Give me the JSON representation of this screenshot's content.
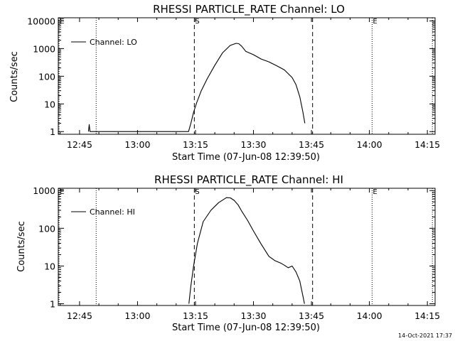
{
  "footer": {
    "timestamp": "14-Oct-2021 17:37"
  },
  "chart_data": [
    {
      "type": "line",
      "title": "RHESSI PARTICLE_RATE Channel: LO",
      "xlabel": "Start Time (07-Jun-08 12:39:50)",
      "ylabel": "Counts/sec",
      "yscale": "log",
      "xlim": [
        -0.5,
        97
      ],
      "ylim": [
        0.8,
        13000
      ],
      "xticks": [
        {
          "t": 5,
          "label": "12:45"
        },
        {
          "t": 20,
          "label": "13:00"
        },
        {
          "t": 35,
          "label": "13:15"
        },
        {
          "t": 50,
          "label": "13:30"
        },
        {
          "t": 65,
          "label": "13:45"
        },
        {
          "t": 80,
          "label": "14:00"
        },
        {
          "t": 95,
          "label": "14:15"
        }
      ],
      "yticks": [
        {
          "v": 1,
          "label": "1"
        },
        {
          "v": 10,
          "label": "10"
        },
        {
          "v": 100,
          "label": "100"
        },
        {
          "v": 1000,
          "label": "1000"
        },
        {
          "v": 10000,
          "label": "10000"
        }
      ],
      "legend": {
        "label": "Channel: LO",
        "position": "top-left"
      },
      "markers": [
        {
          "t": 34.7,
          "style": "dashed",
          "label": "S"
        },
        {
          "t": 65.3,
          "style": "dashed",
          "label": ""
        },
        {
          "t": 9.3,
          "style": "dotted",
          "label": ""
        },
        {
          "t": 80.7,
          "style": "dotted",
          "label": "E"
        },
        {
          "t": 96.3,
          "style": "dotted",
          "label": ""
        },
        {
          "t": -0.3,
          "style": "dotted",
          "label": "E"
        }
      ],
      "series": [
        {
          "name": "Channel: LO",
          "t": [
            7.3,
            7.5,
            7.7,
            33.2,
            33.8,
            34.5,
            35.3,
            36.5,
            38,
            40,
            42,
            44,
            45.5,
            46.2,
            47,
            48,
            50,
            52,
            54,
            56,
            58,
            60,
            61,
            62,
            62.8,
            63.3
          ],
          "y": [
            1,
            1.8,
            1,
            1,
            2,
            5,
            11,
            30,
            80,
            250,
            700,
            1300,
            1550,
            1500,
            1200,
            800,
            600,
            420,
            330,
            240,
            170,
            90,
            50,
            18,
            5,
            2
          ]
        }
      ]
    },
    {
      "type": "line",
      "title": "RHESSI PARTICLE_RATE Channel: HI",
      "xlabel": "Start Time (07-Jun-08 12:39:50)",
      "ylabel": "Counts/sec",
      "yscale": "log",
      "xlim": [
        -0.5,
        97
      ],
      "ylim": [
        0.9,
        1150
      ],
      "xticks": [
        {
          "t": 5,
          "label": "12:45"
        },
        {
          "t": 20,
          "label": "13:00"
        },
        {
          "t": 35,
          "label": "13:15"
        },
        {
          "t": 50,
          "label": "13:30"
        },
        {
          "t": 65,
          "label": "13:45"
        },
        {
          "t": 80,
          "label": "14:00"
        },
        {
          "t": 95,
          "label": "14:15"
        }
      ],
      "yticks": [
        {
          "v": 1,
          "label": "1"
        },
        {
          "v": 10,
          "label": "10"
        },
        {
          "v": 100,
          "label": "100"
        },
        {
          "v": 1000,
          "label": "1000"
        }
      ],
      "legend": {
        "label": "Channel: HI",
        "position": "top-left"
      },
      "markers": [
        {
          "t": 34.7,
          "style": "dashed",
          "label": "S"
        },
        {
          "t": 65.3,
          "style": "dashed",
          "label": ""
        },
        {
          "t": 9.3,
          "style": "dotted",
          "label": ""
        },
        {
          "t": 80.7,
          "style": "dotted",
          "label": "E"
        },
        {
          "t": 96.3,
          "style": "dotted",
          "label": ""
        },
        {
          "t": -0.3,
          "style": "dotted",
          "label": "E"
        }
      ],
      "series": [
        {
          "name": "Channel: HI",
          "t": [
            33.3,
            33.8,
            34.5,
            35.5,
            37,
            39,
            41,
            43,
            44,
            45,
            46,
            47,
            48.5,
            50,
            52,
            54,
            55.5,
            57,
            58,
            59,
            60,
            61,
            62,
            62.4,
            62.8,
            63.2
          ],
          "y": [
            1,
            3,
            10,
            40,
            150,
            300,
            480,
            650,
            640,
            550,
            420,
            280,
            160,
            85,
            38,
            18,
            14,
            12,
            10.5,
            9,
            10,
            7,
            4,
            2.5,
            1.6,
            1
          ]
        }
      ]
    }
  ]
}
